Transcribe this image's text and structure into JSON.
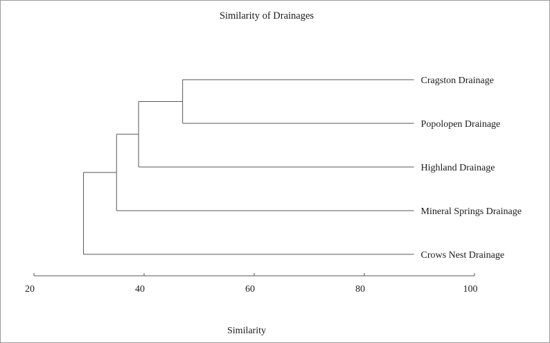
{
  "chart_data": {
    "type": "dendrogram",
    "title": "Similarity of Drainages",
    "xlabel": "Similarity",
    "xlim": [
      20,
      100
    ],
    "xticks": [
      "20",
      "40",
      "60",
      "80",
      "100"
    ],
    "leaves": [
      "Cragston Drainage",
      "Popolopen Drainage",
      "Highland Drainage",
      "Mineral Springs Drainage",
      "Crows Nest Drainage"
    ],
    "leaf_line_end": 89,
    "merges": [
      {
        "members": [
          "Cragston Drainage",
          "Popolopen Drainage"
        ],
        "similarity": 47
      },
      {
        "members": [
          "Cragston Drainage",
          "Popolopen Drainage",
          "Highland Drainage"
        ],
        "similarity": 39
      },
      {
        "members": [
          "Cragston Drainage",
          "Popolopen Drainage",
          "Highland Drainage",
          "Mineral Springs Drainage"
        ],
        "similarity": 35
      },
      {
        "members": [
          "Cragston Drainage",
          "Popolopen Drainage",
          "Highland Drainage",
          "Mineral Springs Drainage",
          "Crows Nest Drainage"
        ],
        "similarity": 29
      }
    ]
  }
}
